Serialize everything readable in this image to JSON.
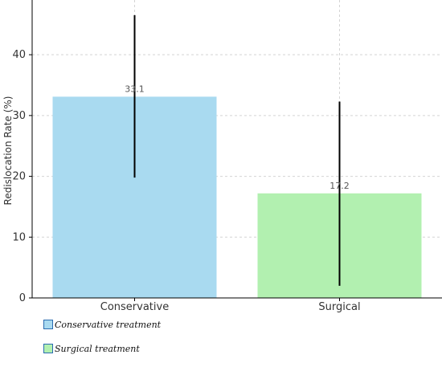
{
  "chart_data": {
    "type": "bar",
    "categories": [
      "Conservative",
      "Surgical"
    ],
    "values": [
      33.1,
      17.2
    ],
    "error_bars": [
      {
        "low": 19.8,
        "high": 46.5
      },
      {
        "low": 2.0,
        "high": 32.3
      }
    ],
    "data_labels": [
      "33.1",
      "17.2"
    ],
    "colors": [
      "#a9daf0",
      "#b2f0b0"
    ],
    "error_color": "#000000",
    "ylabel": "Redislocation Rate (%)",
    "xlabel": "",
    "ylim": [
      0,
      49
    ],
    "yticks": [
      0,
      10,
      20,
      30,
      40
    ],
    "grid": true,
    "legend": {
      "placement": "bottom-left",
      "entries": [
        {
          "label": "Conservative treatment",
          "color": "#a9daf0"
        },
        {
          "label": "Surgical treatment",
          "color": "#b2f0b0"
        }
      ]
    }
  }
}
